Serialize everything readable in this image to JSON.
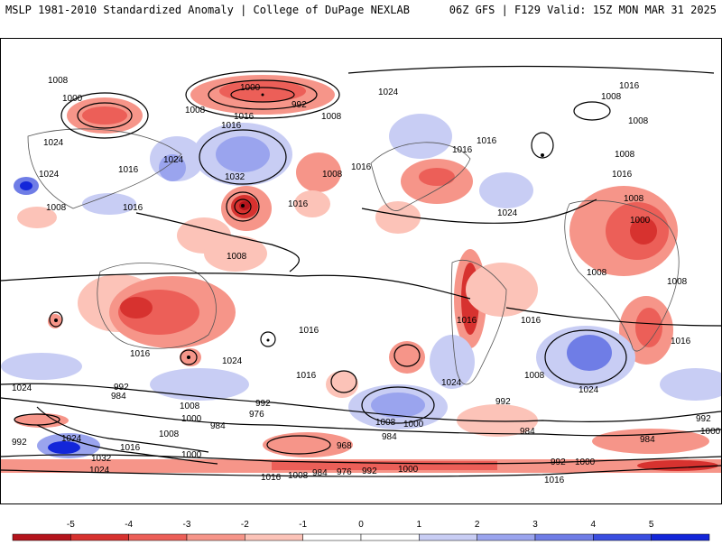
{
  "header": {
    "title": "MSLP 1981-2010 Standardized Anomaly | College of DuPage NEXLAB",
    "run_info": "06Z GFS | F129 Valid: 15Z MON MAR 31 2025"
  },
  "colorbar": {
    "ticks": [
      "-5",
      "-4",
      "-3",
      "-2",
      "-1",
      "0",
      "1",
      "2",
      "3",
      "4",
      "5"
    ],
    "colors": [
      "#b4141c",
      "#d7322f",
      "#ec5f58",
      "#f69589",
      "#fcc3b8",
      "#ffffff",
      "#ffffff",
      "#c8cdf4",
      "#9aa4ee",
      "#6f7de6",
      "#3a4ee0",
      "#1326d9"
    ]
  },
  "contour_labels": [
    "1008",
    "1000",
    "1024",
    "1016",
    "1024",
    "1008",
    "1016",
    "1000",
    "992",
    "1008",
    "1016",
    "1032",
    "1024",
    "1008",
    "1016",
    "1008",
    "1016",
    "1024",
    "1016",
    "1016",
    "1024",
    "1016",
    "1008",
    "1008",
    "1016",
    "1008",
    "1008",
    "1000",
    "1016",
    "1008",
    "1008",
    "1016",
    "1008",
    "1016",
    "1024",
    "1008",
    "1016",
    "1024",
    "1016",
    "1024",
    "992",
    "984",
    "1008",
    "1000",
    "984",
    "992",
    "976",
    "1008",
    "1016",
    "992",
    "1024",
    "1032",
    "1024",
    "1000",
    "1016",
    "968",
    "984",
    "1024",
    "1008",
    "1000",
    "992",
    "1016",
    "1008",
    "984",
    "992",
    "984",
    "976",
    "1000",
    "992",
    "1000",
    "1016",
    "1016",
    "984",
    "992",
    "1000"
  ]
}
